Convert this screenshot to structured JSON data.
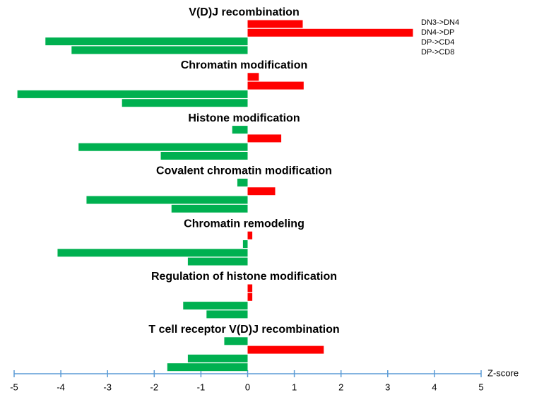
{
  "chart_data": {
    "type": "bar",
    "orientation": "horizontal",
    "categories": [
      "V(D)J recombination",
      "Chromatin modification",
      "Histone modification",
      "Covalent chromatin modification",
      "Chromatin remodeling",
      "Regulation of histone modification",
      "T cell receptor V(D)J recombination"
    ],
    "series": [
      {
        "name": "DN3->DN4",
        "values": [
          1.18,
          0.24,
          -0.33,
          -0.22,
          0.1,
          0.1,
          -0.5
        ]
      },
      {
        "name": "DN4->DP",
        "values": [
          3.54,
          1.2,
          0.72,
          0.59,
          -0.1,
          0.1,
          1.63
        ]
      },
      {
        "name": "DP->CD4",
        "values": [
          -4.33,
          -4.93,
          -3.62,
          -3.45,
          -4.07,
          -1.38,
          -1.28
        ]
      },
      {
        "name": "DP->CD8",
        "values": [
          -3.77,
          -2.69,
          -1.86,
          -1.63,
          -1.28,
          -0.88,
          -1.72
        ]
      }
    ],
    "positive_color": "#ff0000",
    "negative_color": "#00b050",
    "axis_color": "#5b9bd5",
    "xlabel": "Z-score",
    "xlim": [
      -5,
      5
    ],
    "xticks": [
      -5,
      -4,
      -3,
      -2,
      -1,
      0,
      1,
      2,
      3,
      4,
      5
    ]
  }
}
